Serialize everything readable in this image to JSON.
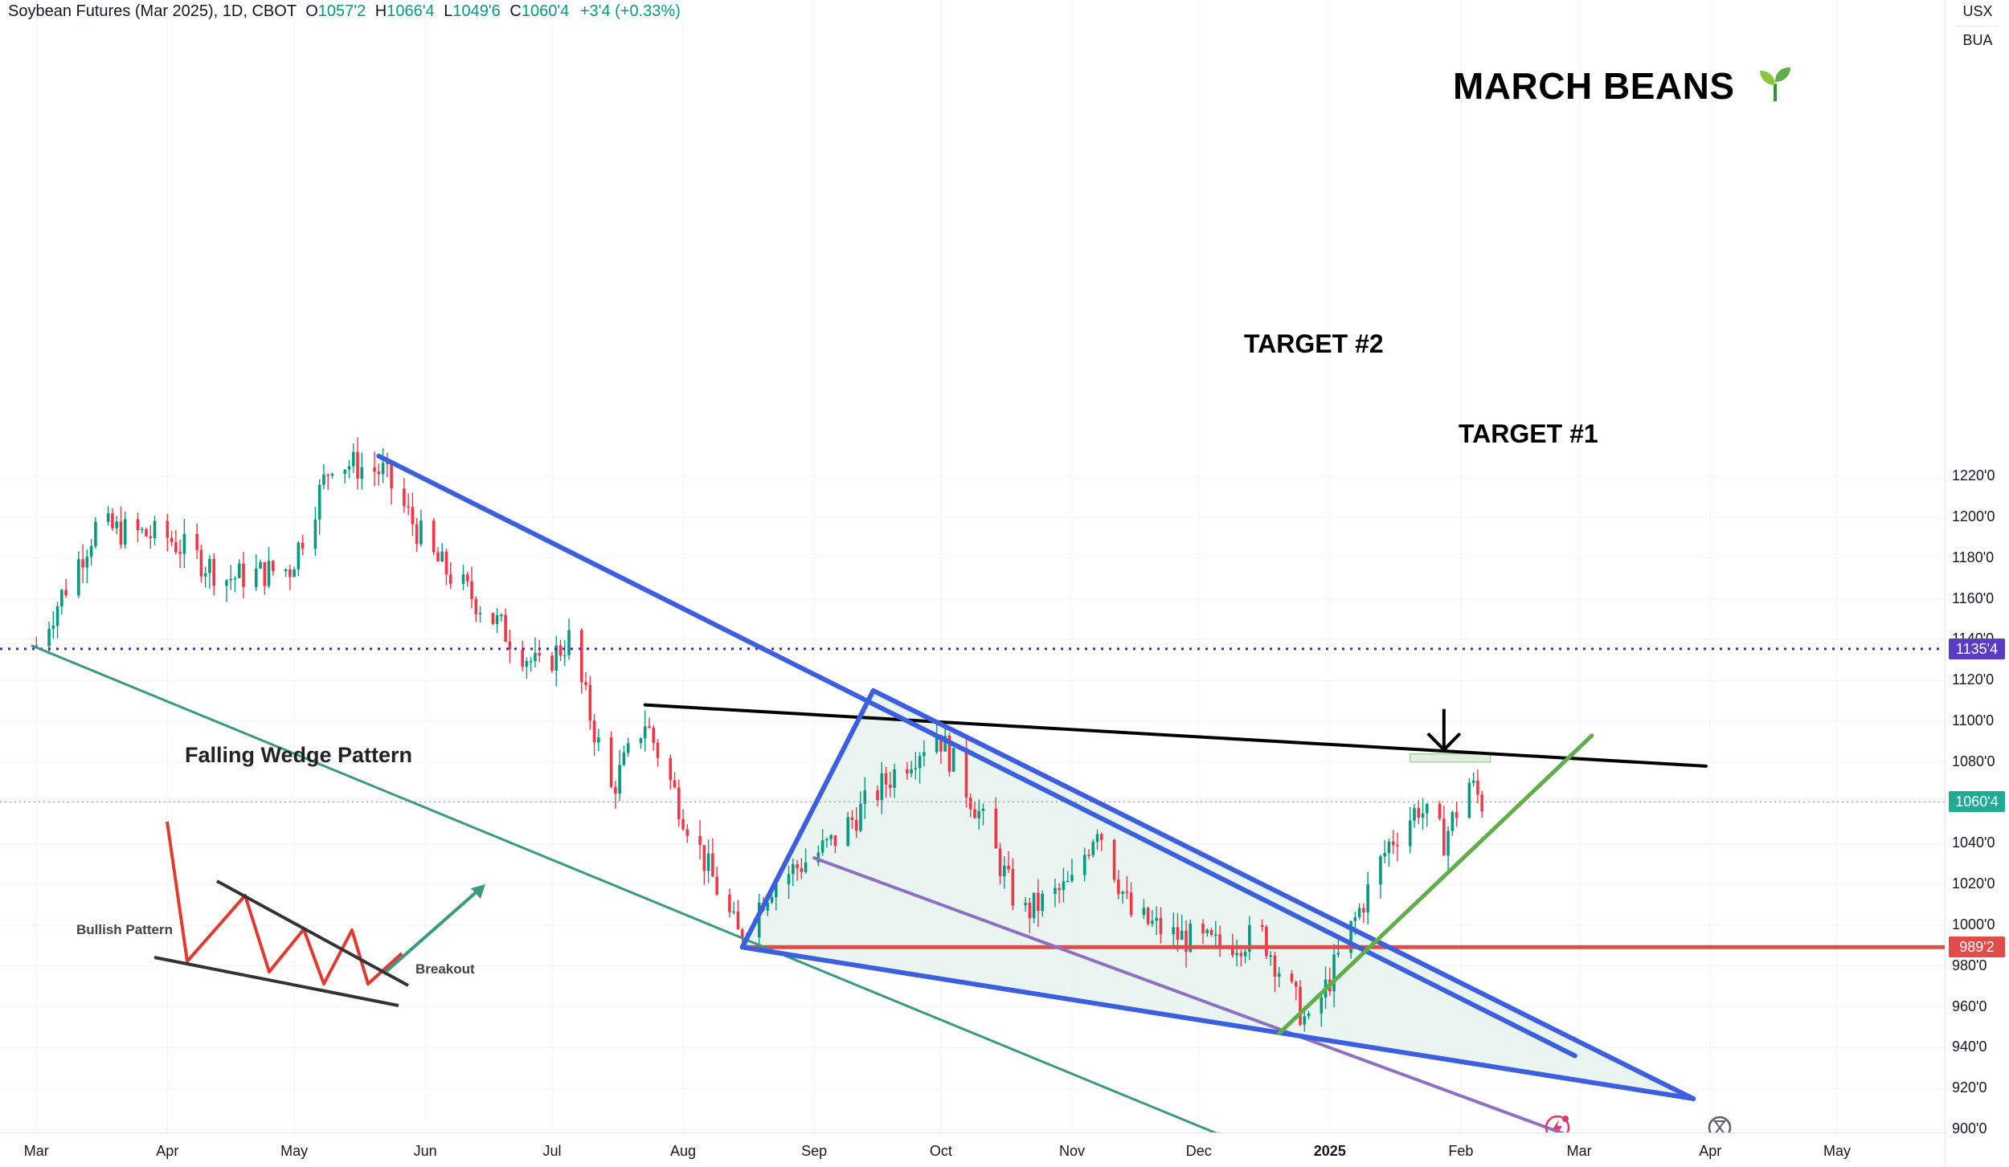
{
  "header": {
    "symbol": "Soybean Futures (Mar 2025), 1D, CBOT",
    "open_label": "O",
    "open": "1057'2",
    "high_label": "H",
    "high": "1066'4",
    "low_label": "L",
    "low": "1049'6",
    "close_label": "C",
    "close": "1060'4",
    "change": "+3'4 (+0.33%)"
  },
  "title": "MARCH BEANS",
  "annotations": {
    "target2": "TARGET #2",
    "target1": "TARGET #1"
  },
  "price_scale": {
    "currency": "USX",
    "unit": "BUA",
    "current_price": "1060'4",
    "target2_price": "1135'4",
    "support_price": "989'2"
  },
  "inset": {
    "title": "Falling Wedge Pattern",
    "left_label": "Bullish Pattern",
    "right_label": "Breakout"
  },
  "icons": {
    "lightning": "lightning-icon",
    "replay": "hourglass-icon"
  },
  "colors": {
    "up": "#089981",
    "down": "#f23645",
    "wedge_line": "#3c5fe0",
    "resistance": "#000000",
    "support": "#e34a4a",
    "target2": "#3f2fa8",
    "uptrend": "#5fae4a",
    "channel": "#3a9a80",
    "lower_channel": "#8f6fc4"
  },
  "chart_data": {
    "type": "candlestick",
    "title": "Soybean Futures (Mar 2025), 1D, CBOT",
    "ylabel": "USX",
    "ylim": [
      898,
      1244
    ],
    "y_ticks": [
      "900'0",
      "920'0",
      "940'0",
      "960'0",
      "980'0",
      "1000'0",
      "1020'0",
      "1040'0",
      "1060'0",
      "1080'0",
      "1100'0",
      "1120'0",
      "1140'0",
      "1160'0",
      "1180'0",
      "1200'0",
      "1220'0"
    ],
    "x_ticks": [
      "Mar",
      "Apr",
      "May",
      "Jun",
      "Jul",
      "Aug",
      "Sep",
      "Oct",
      "Nov",
      "Dec",
      "2025",
      "Feb",
      "Mar",
      "Apr",
      "May"
    ],
    "close_path": [
      {
        "date": "2024-03-01",
        "close": 1137
      },
      {
        "date": "2024-03-15",
        "close": 1195
      },
      {
        "date": "2024-04-01",
        "close": 1190
      },
      {
        "date": "2024-04-15",
        "close": 1170
      },
      {
        "date": "2024-04-30",
        "close": 1175
      },
      {
        "date": "2024-05-10",
        "close": 1228
      },
      {
        "date": "2024-05-22",
        "close": 1222
      },
      {
        "date": "2024-06-03",
        "close": 1180
      },
      {
        "date": "2024-06-15",
        "close": 1155
      },
      {
        "date": "2024-06-28",
        "close": 1125
      },
      {
        "date": "2024-07-05",
        "close": 1140
      },
      {
        "date": "2024-07-15",
        "close": 1066
      },
      {
        "date": "2024-07-23",
        "close": 1100
      },
      {
        "date": "2024-08-01",
        "close": 1055
      },
      {
        "date": "2024-08-14",
        "close": 995
      },
      {
        "date": "2024-08-22",
        "close": 1020
      },
      {
        "date": "2024-09-05",
        "close": 1040
      },
      {
        "date": "2024-09-20",
        "close": 1075
      },
      {
        "date": "2024-09-30",
        "close": 1095
      },
      {
        "date": "2024-10-10",
        "close": 1055
      },
      {
        "date": "2024-10-20",
        "close": 1005
      },
      {
        "date": "2024-11-01",
        "close": 1020
      },
      {
        "date": "2024-11-07",
        "close": 1050
      },
      {
        "date": "2024-11-15",
        "close": 1005
      },
      {
        "date": "2024-11-25",
        "close": 995
      },
      {
        "date": "2024-12-05",
        "close": 990
      },
      {
        "date": "2024-12-16",
        "close": 995
      },
      {
        "date": "2024-12-27",
        "close": 950
      },
      {
        "date": "2025-01-06",
        "close": 998
      },
      {
        "date": "2025-01-15",
        "close": 1040
      },
      {
        "date": "2025-01-22",
        "close": 1058
      },
      {
        "date": "2025-01-28",
        "close": 1042
      },
      {
        "date": "2025-02-03",
        "close": 1070
      },
      {
        "date": "2025-02-06",
        "close": 1060
      }
    ],
    "levels": [
      {
        "name": "TARGET #2",
        "price": 1135.5
      },
      {
        "name": "TARGET #1",
        "price": 1081
      },
      {
        "name": "current",
        "price": 1060.5
      },
      {
        "name": "support",
        "price": 989.25
      }
    ]
  }
}
